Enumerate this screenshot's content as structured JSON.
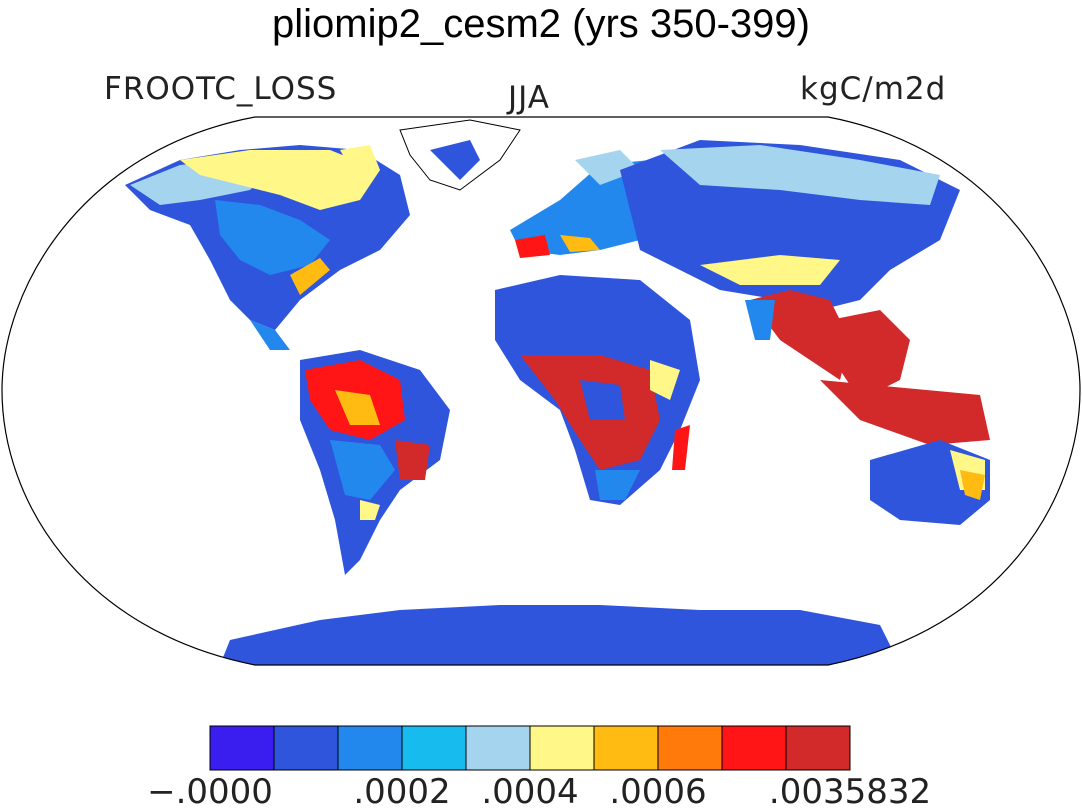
{
  "title": "pliomip2_cesm2 (yrs 350-399)",
  "left_label": "FROOTC_LOSS",
  "center_label": "JJA",
  "right_label": "kgC/m2d",
  "colorbar": {
    "colors": [
      "#3a1ef0",
      "#2f55dd",
      "#2288ee",
      "#18bbee",
      "#a4d4ee",
      "#fff788",
      "#ffbb12",
      "#ff7a0a",
      "#ff1515",
      "#d22a2a"
    ],
    "tick_labels": [
      "−.0000",
      ".0002",
      ".0004",
      ".0006",
      ".0035832"
    ]
  },
  "colors": {
    "ocean": "#ffffff",
    "coastline": "#000000"
  }
}
